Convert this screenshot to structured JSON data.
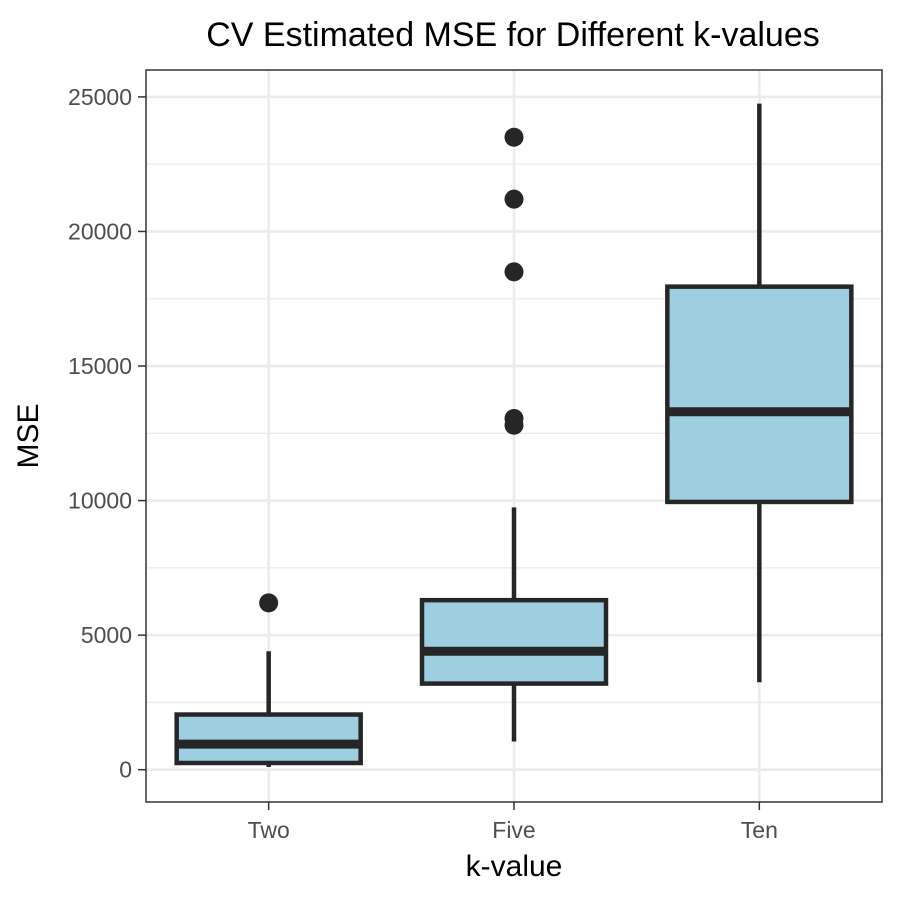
{
  "chart_data": {
    "type": "boxplot",
    "title": "CV Estimated MSE for Different k-values",
    "xlabel": "k-value",
    "ylabel": "MSE",
    "ylim": [
      -1200,
      26000
    ],
    "yticks": [
      0,
      5000,
      10000,
      15000,
      20000,
      25000
    ],
    "y_minor_ticks": [
      2500,
      7500,
      12500,
      17500,
      22500
    ],
    "grid": true,
    "legend": "none",
    "colors": {
      "box_fill": "#9ecfe0",
      "stroke": "#262626",
      "grid": "#ebebeb",
      "panel_border": "#333333"
    },
    "categories": [
      "Two",
      "Five",
      "Ten"
    ],
    "boxes": [
      {
        "category": "Two",
        "whisker_low": 100,
        "q1": 250,
        "median": 950,
        "q3": 2050,
        "whisker_high": 4400,
        "outliers": [
          6200
        ]
      },
      {
        "category": "Five",
        "whisker_low": 1050,
        "q1": 3200,
        "median": 4400,
        "q3": 6300,
        "whisker_high": 9750,
        "outliers": [
          12800,
          13050,
          18500,
          21200,
          23500
        ]
      },
      {
        "category": "Ten",
        "whisker_low": 3250,
        "q1": 9950,
        "median": 13300,
        "q3": 17950,
        "whisker_high": 24750,
        "outliers": []
      }
    ]
  }
}
